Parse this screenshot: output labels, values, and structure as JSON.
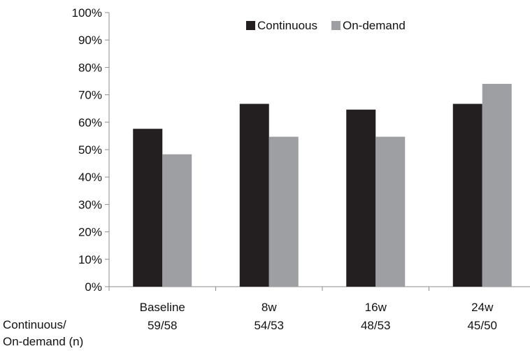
{
  "chart_data": {
    "type": "bar",
    "title": "",
    "xlabel": "",
    "ylabel": "",
    "categories": [
      "Baseline",
      "8w",
      "16w",
      "24w"
    ],
    "category_counts": [
      "59/58",
      "54/53",
      "48/53",
      "45/50"
    ],
    "row_label_lines": [
      "Continuous/",
      "On-demand (n)"
    ],
    "ylim": [
      0,
      100
    ],
    "y_ticks": [
      "0%",
      "10%",
      "20%",
      "30%",
      "40%",
      "50%",
      "60%",
      "70%",
      "80%",
      "90%",
      "100%"
    ],
    "grid": false,
    "legend": "top-right",
    "series": [
      {
        "name": "Continuous",
        "values": [
          57.6,
          66.7,
          64.6,
          66.7
        ],
        "color": "#231f20"
      },
      {
        "name": "On-demand",
        "values": [
          48.3,
          54.7,
          54.7,
          74.0
        ],
        "color": "#9d9fa2"
      }
    ]
  }
}
